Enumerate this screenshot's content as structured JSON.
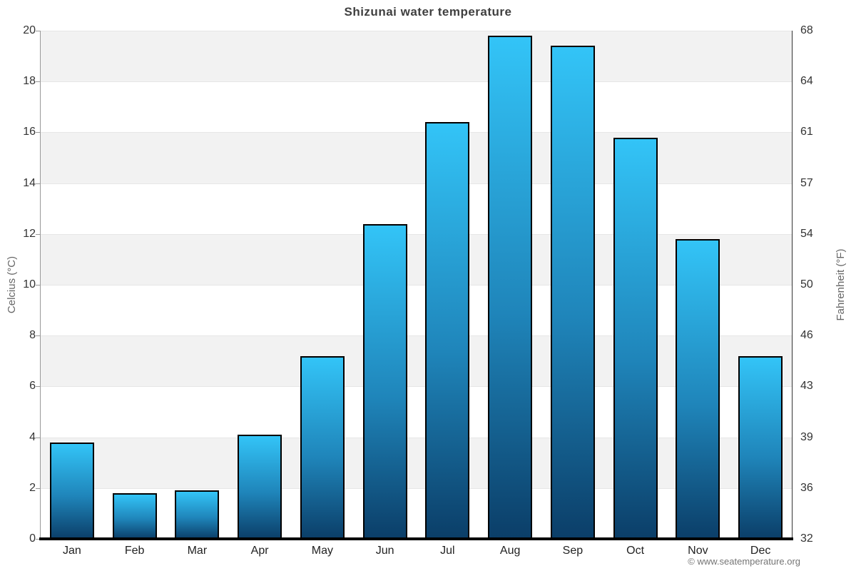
{
  "title": "Shizunai water temperature",
  "footer": {
    "credit": "© www.seatemperature.org"
  },
  "chart_data": {
    "type": "bar",
    "title": "Shizunai water temperature",
    "categories": [
      "Jan",
      "Feb",
      "Mar",
      "Apr",
      "May",
      "Jun",
      "Jul",
      "Aug",
      "Sep",
      "Oct",
      "Nov",
      "Dec"
    ],
    "values": [
      3.8,
      1.8,
      1.9,
      4.1,
      7.2,
      12.4,
      16.4,
      19.8,
      19.4,
      15.8,
      11.8,
      7.2
    ],
    "series_name": "Water temperature",
    "xlabel": "",
    "ylabel_left": "Celcius (°C)",
    "ylabel_right": "Fahrenheit (°F)",
    "ylim_celsius": [
      0,
      20
    ],
    "yticks_celsius": [
      0,
      2,
      4,
      6,
      8,
      10,
      12,
      14,
      16,
      18,
      20
    ],
    "yticks_fahrenheit": [
      32,
      36,
      39,
      43,
      46,
      50,
      54,
      57,
      61,
      64,
      68
    ],
    "grid": true,
    "legend_position": "none",
    "band_pattern": "alternating gray bands every 2°C, gray on 2-4, 6-8, 10-12, 14-16, 18-20",
    "colors": {
      "bar_gradient_top": "#33c4f7",
      "bar_gradient_bottom": "#0b3e68",
      "bar_border": "#000000",
      "plot_band": "#f2f2f2",
      "gridline": "#e6e6e6",
      "axis_bottom": "#000000",
      "title_text": "#3f3f3f",
      "tick_text": "#333333",
      "axis_title_text": "#666666"
    }
  }
}
